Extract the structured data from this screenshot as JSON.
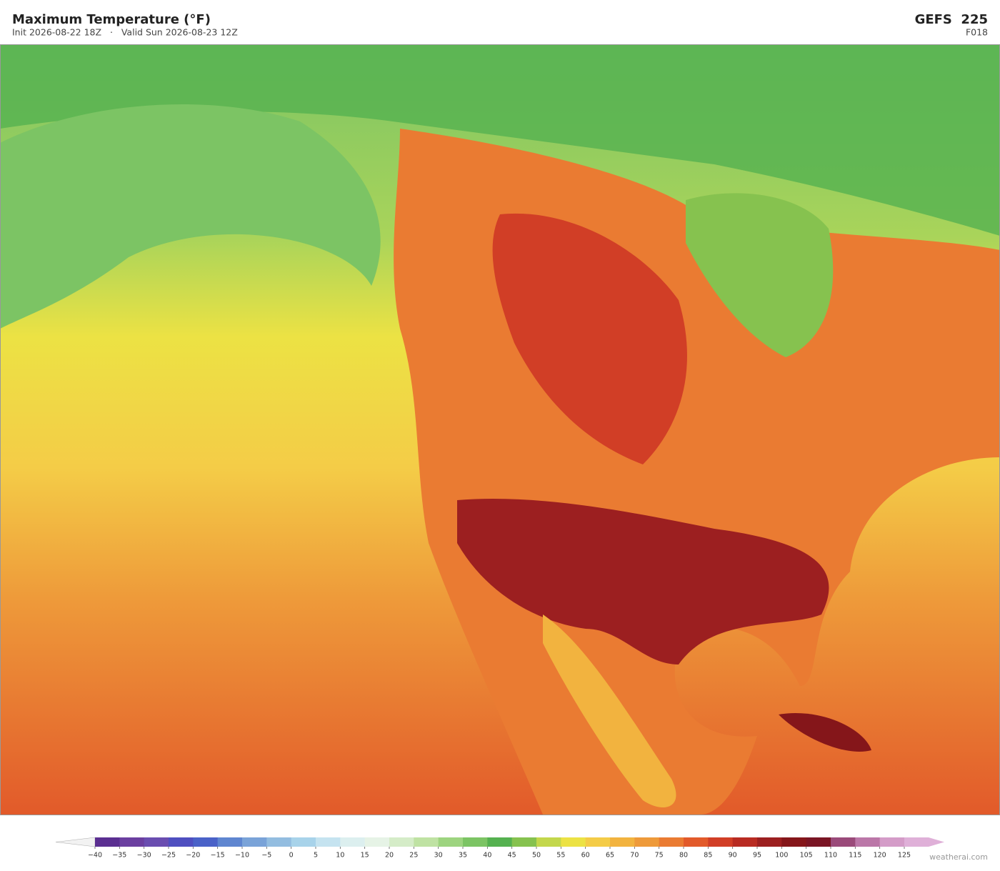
{
  "header": {
    "title": "Maximum Temperature  (°F)",
    "subtitle": "Init 2026-08-22 18Z   ·   Valid Sun 2026-08-23 12Z",
    "model": "GEFS  225",
    "forecast_hour": "F018"
  },
  "colorbar": {
    "ticks": [
      {
        "value": -40,
        "label": "−40"
      },
      {
        "value": -35,
        "label": "−35"
      },
      {
        "value": -30,
        "label": "−30"
      },
      {
        "value": -25,
        "label": "−25"
      },
      {
        "value": -20,
        "label": "−20"
      },
      {
        "value": -15,
        "label": "−15"
      },
      {
        "value": -10,
        "label": "−10"
      },
      {
        "value": -5,
        "label": "−5"
      },
      0,
      5,
      10,
      15,
      20,
      25,
      30,
      35,
      40,
      45,
      50,
      55,
      60,
      65,
      70,
      75,
      80,
      85,
      90,
      95,
      100,
      105,
      110,
      115,
      120,
      125
    ],
    "colors": [
      "#5b2f91",
      "#6b3fa0",
      "#6a4db0",
      "#4f4fc0",
      "#4a62c8",
      "#5f86d0",
      "#7aa3d8",
      "#93bde0",
      "#a8d3ea",
      "#c5e3f0",
      "#dcefef",
      "#e6f3e6",
      "#d5ecc8",
      "#bfe2a3",
      "#9dd47f",
      "#7cc464",
      "#55b150",
      "#86c24f",
      "#c3d74c",
      "#ece244",
      "#f4cc47",
      "#f2b33f",
      "#ee9a3a",
      "#ea7b32",
      "#e25a2a",
      "#d13e26",
      "#b82b22",
      "#9c1f20",
      "#85161a",
      "#7a1524",
      "#9a4a7a",
      "#bb77a8",
      "#d49cc8"
    ],
    "under_color": "#f2f2f2",
    "over_color": "#dfb0d8"
  },
  "watermark": "weatherai.com"
}
